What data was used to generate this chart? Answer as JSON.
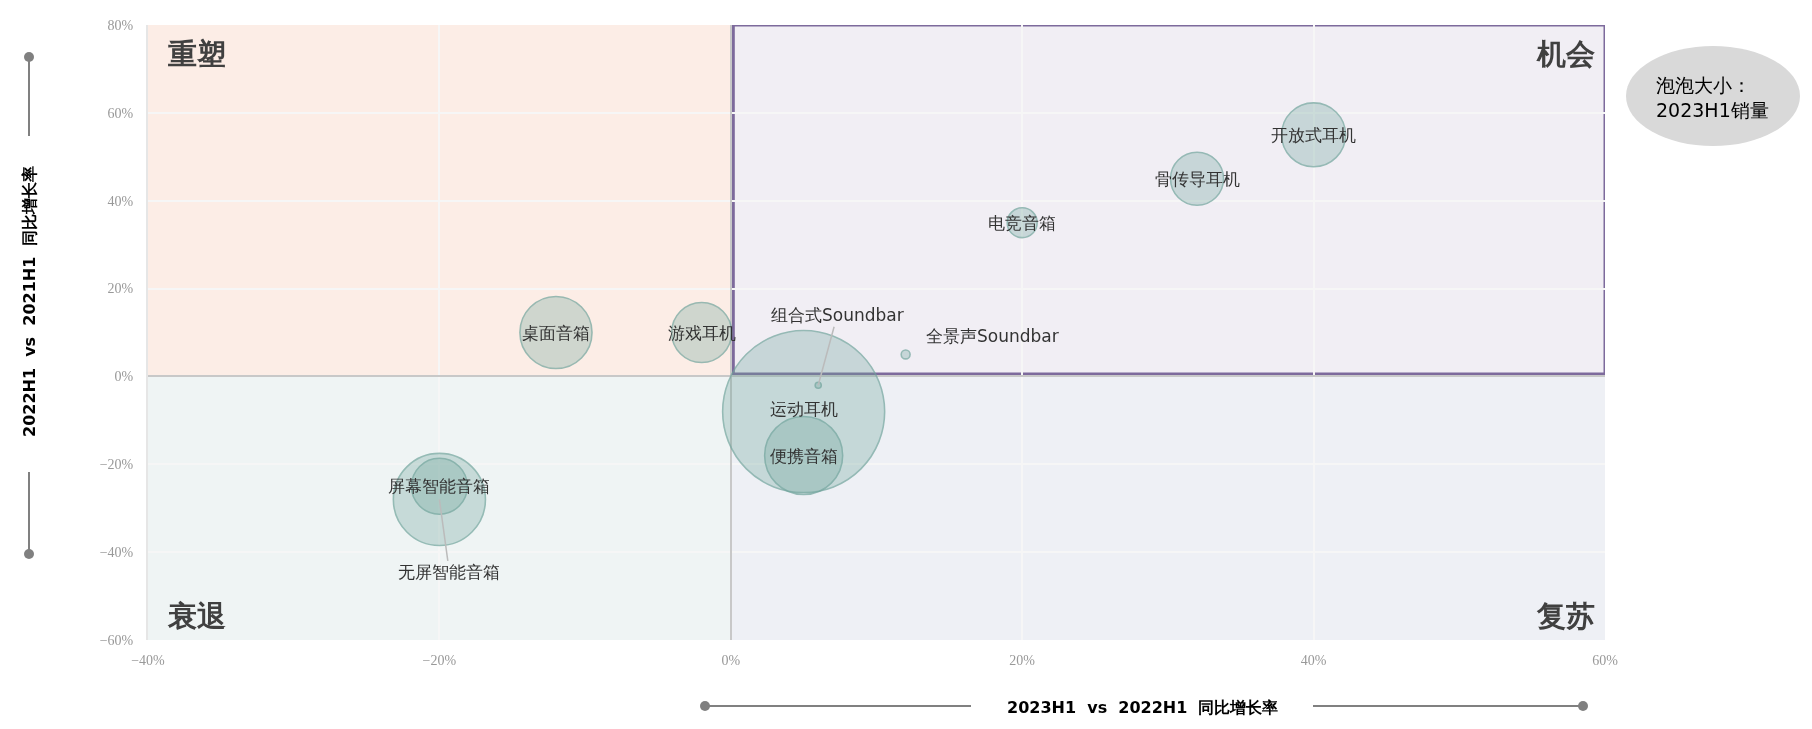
{
  "chart_data": {
    "type": "bubble",
    "xlabel": "2023H1  vs  2022H1  同比增长率",
    "ylabel": "2022H1  vs  2021H1  同比增长率",
    "xlim": [
      -40,
      60
    ],
    "xticks": [
      {
        "value": -40,
        "label": "−40%"
      },
      {
        "value": -20,
        "label": "−20%"
      },
      {
        "value": 0,
        "label": "0%"
      },
      {
        "value": 20,
        "label": "20%"
      },
      {
        "value": 40,
        "label": "40%"
      },
      {
        "value": 60,
        "label": "60%"
      }
    ],
    "ylim": [
      -60,
      80
    ],
    "yticks": [
      {
        "value": -60,
        "label": "−60%"
      },
      {
        "value": -40,
        "label": "−40%"
      },
      {
        "value": -20,
        "label": "−20%"
      },
      {
        "value": 0,
        "label": "0%"
      },
      {
        "value": 20,
        "label": "20%"
      },
      {
        "value": 40,
        "label": "40%"
      },
      {
        "value": 60,
        "label": "60%"
      },
      {
        "value": 80,
        "label": "80%"
      }
    ],
    "grid": true,
    "series": [
      {
        "color": "#6fa39b",
        "x": [
          40,
          32,
          20,
          12,
          6,
          5,
          5,
          -12,
          -2,
          -20,
          -20
        ],
        "values": [
          55,
          45,
          35,
          5,
          -2,
          -8,
          -18,
          10,
          10,
          -25,
          -28
        ],
        "sizes": [
          0.156,
          0.107,
          0.034,
          0.003,
          0.0014,
          1,
          0.232,
          0.198,
          0.137,
          0.119,
          0.323
        ]
      }
    ],
    "annotations": [
      {
        "text": "开放式耳机",
        "x": 40,
        "y": 55
      },
      {
        "text": "骨传导耳机",
        "x": 32,
        "y": 45
      },
      {
        "text": "电竞音箱",
        "x": 20,
        "y": 35
      },
      {
        "text": "全景声Soundbar",
        "x": 12,
        "y": 5
      },
      {
        "text": "组合式Soundbar",
        "x": 6,
        "y": -2
      },
      {
        "text": "运动耳机",
        "x": 5,
        "y": -8
      },
      {
        "text": "便携音箱",
        "x": 5,
        "y": -18
      },
      {
        "text": "桌面音箱",
        "x": -12,
        "y": 10
      },
      {
        "text": "游戏耳机",
        "x": -2,
        "y": 10
      },
      {
        "text": "屏幕智能音箱",
        "x": -20,
        "y": -25
      },
      {
        "text": "无屏智能音箱",
        "x": -20,
        "y": -28
      },
      "重塑",
      "机会",
      "衰退",
      "复苏",
      "泡泡大小：\n2023H1销量"
    ]
  }
}
